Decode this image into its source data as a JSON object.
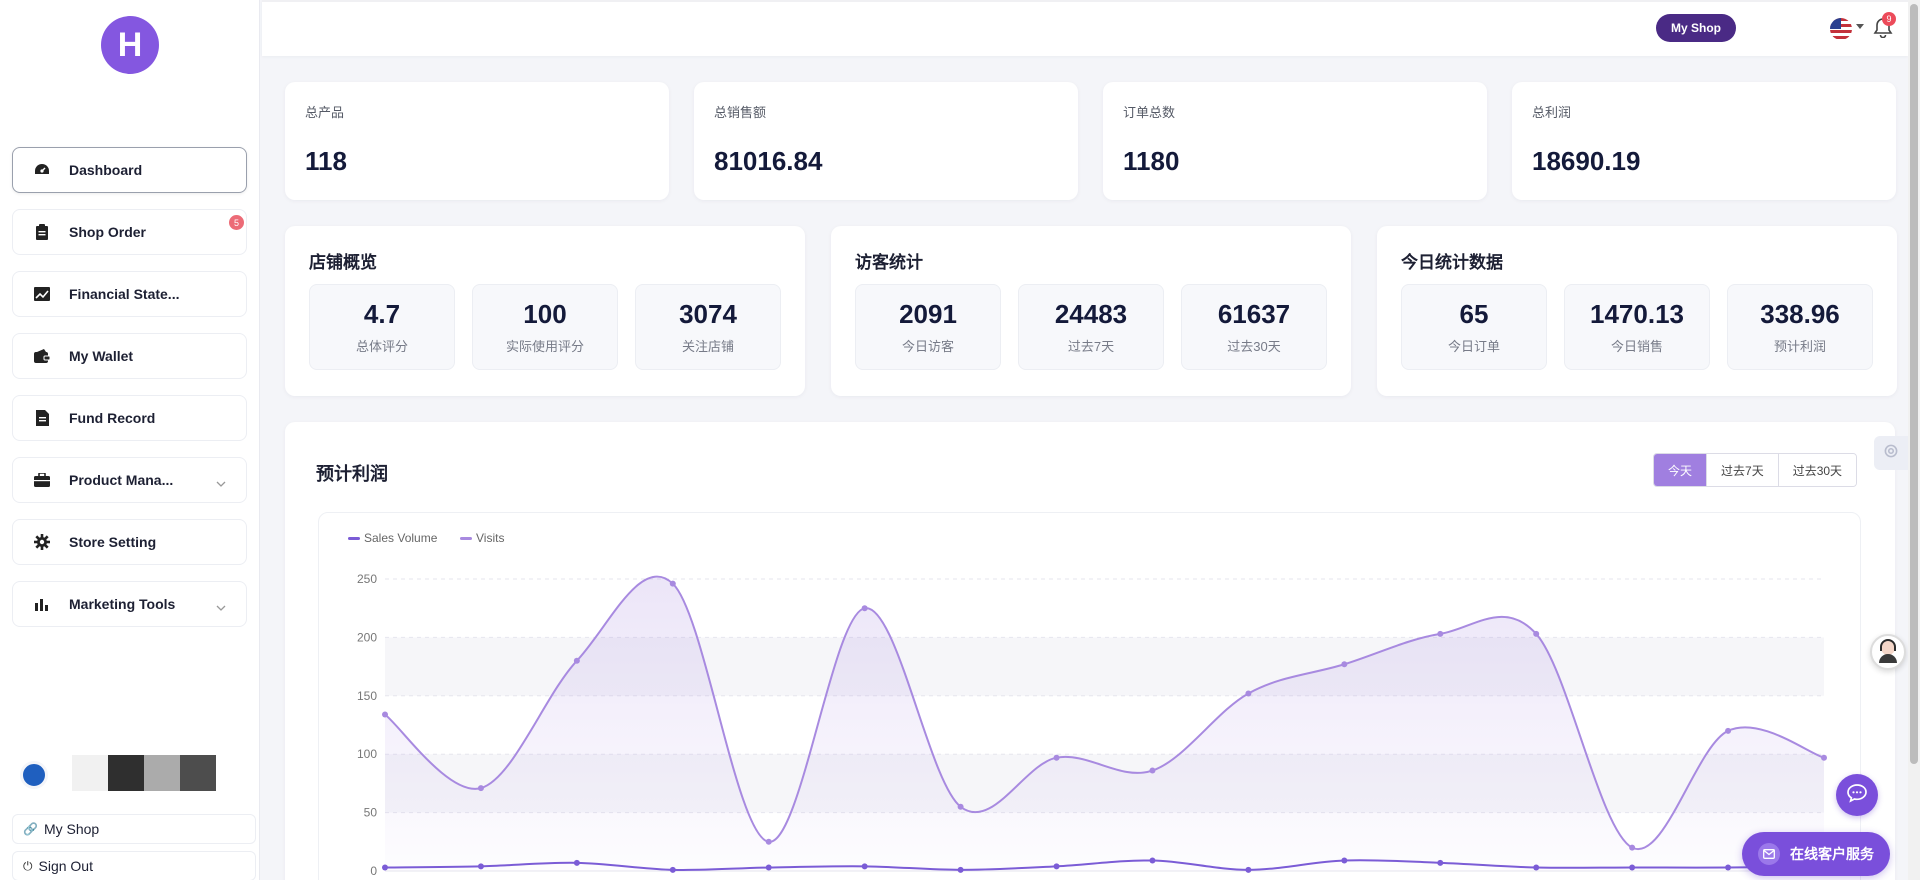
{
  "brand": {
    "logo_letter": "H",
    "accent": "#8457e0"
  },
  "sidebar": {
    "items": [
      {
        "label": "Dashboard",
        "icon": "dashboard-icon",
        "active": true
      },
      {
        "label": "Shop Order",
        "icon": "clipboard-icon",
        "badge": "5"
      },
      {
        "label": "Financial State...",
        "icon": "chart-line-icon"
      },
      {
        "label": "My Wallet",
        "icon": "wallet-icon"
      },
      {
        "label": "Fund Record",
        "icon": "file-icon"
      },
      {
        "label": "Product Mana...",
        "icon": "briefcase-icon",
        "expandable": true
      },
      {
        "label": "Store Setting",
        "icon": "gear-icon"
      },
      {
        "label": "Marketing Tools",
        "icon": "bar-chart-icon",
        "expandable": true
      }
    ],
    "bottom": {
      "my_shop": "My Shop",
      "sign_out": "Sign Out"
    }
  },
  "topbar": {
    "my_shop_button": "My Shop",
    "notification_count": "9",
    "language_flag": "us-flag-icon"
  },
  "stats": [
    {
      "label": "总产品",
      "value": "118"
    },
    {
      "label": "总销售额",
      "value": "81016.84"
    },
    {
      "label": "订单总数",
      "value": "1180"
    },
    {
      "label": "总利润",
      "value": "18690.19"
    }
  ],
  "panels": [
    {
      "title": "店铺概览",
      "items": [
        {
          "value": "4.7",
          "label": "总体评分"
        },
        {
          "value": "100",
          "label": "实际使用评分"
        },
        {
          "value": "3074",
          "label": "关注店铺"
        }
      ]
    },
    {
      "title": "访客统计",
      "items": [
        {
          "value": "2091",
          "label": "今日访客"
        },
        {
          "value": "24483",
          "label": "过去7天"
        },
        {
          "value": "61637",
          "label": "过去30天"
        }
      ]
    },
    {
      "title": "今日统计数据",
      "items": [
        {
          "value": "65",
          "label": "今日订单"
        },
        {
          "value": "1470.13",
          "label": "今日销售"
        },
        {
          "value": "338.96",
          "label": "预计利润"
        }
      ]
    }
  ],
  "chart_section": {
    "title": "预计利润",
    "tabs": [
      "今天",
      "过去7天",
      "过去30天"
    ],
    "active_tab": "今天"
  },
  "chart_data": {
    "type": "line",
    "series": [
      {
        "name": "Sales Volume",
        "color": "#7b5cd6",
        "values": [
          3,
          4,
          7,
          1,
          3,
          4,
          1,
          4,
          9,
          1,
          9,
          7,
          3,
          3,
          3,
          4
        ]
      },
      {
        "name": "Visits",
        "color": "#a88ae0",
        "values": [
          134,
          71,
          180,
          246,
          25,
          225,
          55,
          97,
          86,
          152,
          177,
          203,
          203,
          20,
          120,
          97
        ]
      }
    ],
    "yticks": [
      0,
      50,
      100,
      150,
      200,
      250
    ],
    "ylim": [
      0,
      250
    ],
    "legend": "top-left",
    "grid": true
  },
  "widgets": {
    "service_label": "在线客户服务"
  }
}
